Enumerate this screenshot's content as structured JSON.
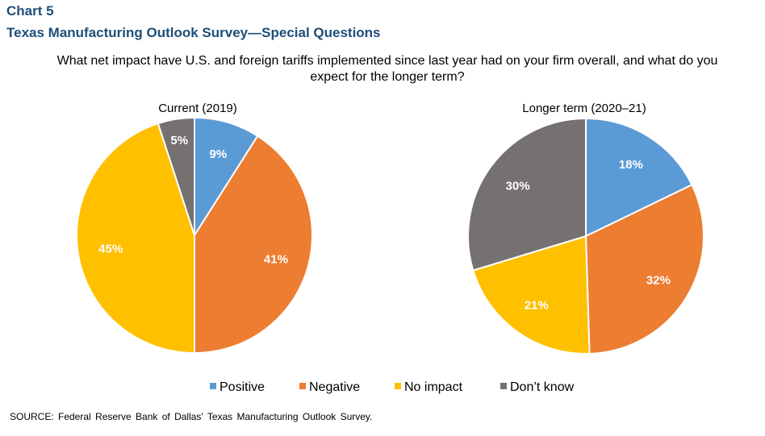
{
  "header": {
    "chart_label": "Chart 5",
    "title": "Texas Manufacturing Outlook Survey—Special Questions",
    "question": "What net impact have U.S. and foreign tariffs implemented since last year had on your firm overall, and what do you expect for the longer term?"
  },
  "colors": {
    "Positive": "#5b9bd5",
    "Negative": "#ed7d31",
    "No impact": "#ffc000",
    "Don’t know": "#767171"
  },
  "legend": [
    "Positive",
    "Negative",
    "No impact",
    "Don’t know"
  ],
  "source": "SOURCE: Federal Reserve Bank of Dallas' Texas Manufacturing Outlook Survey.",
  "chart_data": [
    {
      "type": "pie",
      "title": "Current (2019)",
      "categories": [
        "Positive",
        "Negative",
        "No impact",
        "Don’t know"
      ],
      "values": [
        9,
        41,
        45,
        5
      ],
      "labels": [
        "9%",
        "41%",
        "45%",
        "5%"
      ]
    },
    {
      "type": "pie",
      "title": "Longer term (2020–21)",
      "categories": [
        "Positive",
        "Negative",
        "No impact",
        "Don’t know"
      ],
      "values": [
        18,
        32,
        21,
        30
      ],
      "labels": [
        "18%",
        "32%",
        "21%",
        "30%"
      ]
    }
  ]
}
